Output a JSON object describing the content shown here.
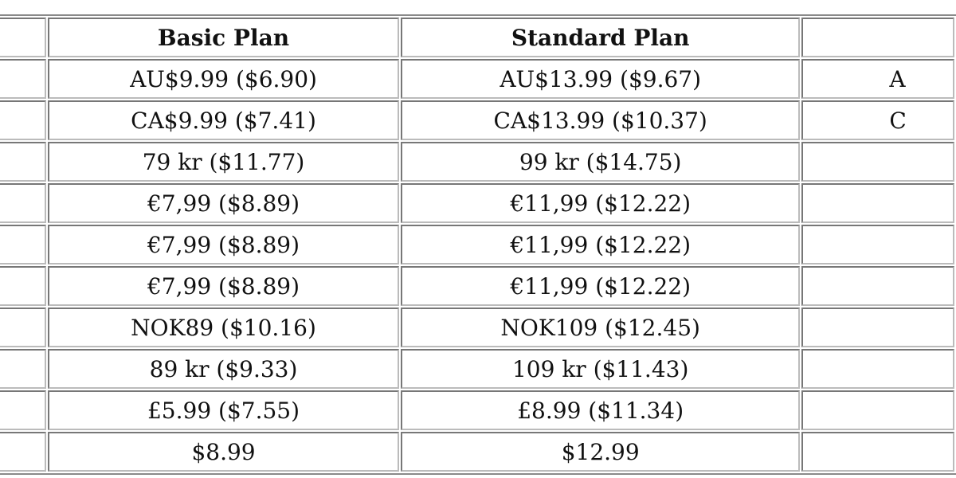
{
  "table": {
    "headers": [
      "",
      "Basic Plan",
      "Standard Plan",
      ""
    ],
    "rows": [
      {
        "basic": "AU$9.99 ($6.90)",
        "standard": "AU$13.99 ($9.67)",
        "premium_partial": "A"
      },
      {
        "basic": "CA$9.99 ($7.41)",
        "standard": "CA$13.99 ($10.37)",
        "premium_partial": "C"
      },
      {
        "basic": "79 kr ($11.77)",
        "standard": "99 kr ($14.75)",
        "premium_partial": ""
      },
      {
        "basic": "€7,99 ($8.89)",
        "standard": "€11,99 ($12.22)",
        "premium_partial": ""
      },
      {
        "basic": "€7,99 ($8.89)",
        "standard": "€11,99 ($12.22)",
        "premium_partial": ""
      },
      {
        "basic": "€7,99 ($8.89)",
        "standard": "€11,99 ($12.22)",
        "premium_partial": ""
      },
      {
        "basic": "NOK89 ($10.16)",
        "standard": "NOK109 ($12.45)",
        "premium_partial": ""
      },
      {
        "basic": "89 kr ($9.33)",
        "standard": "109 kr ($11.43)",
        "premium_partial": ""
      },
      {
        "basic": "£5.99 ($7.55)",
        "standard": "£8.99 ($11.34)",
        "premium_partial": ""
      },
      {
        "basic": "$8.99",
        "standard": "$12.99",
        "premium_partial": ""
      }
    ]
  }
}
